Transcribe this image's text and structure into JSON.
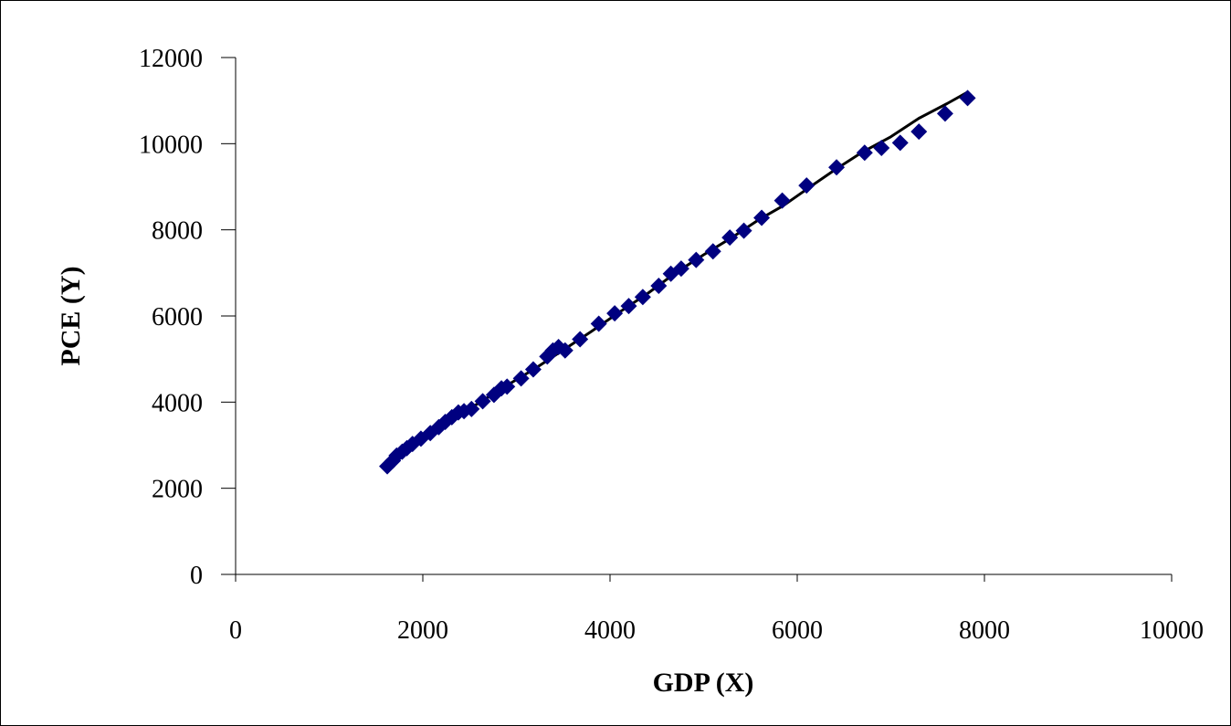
{
  "chart_data": {
    "type": "scatter",
    "title": "",
    "xlabel": "GDP (X)",
    "ylabel": "PCE (Y)",
    "xlim": [
      0,
      10000
    ],
    "ylim": [
      0,
      12000
    ],
    "x_ticks": [
      0,
      2000,
      4000,
      6000,
      8000,
      10000
    ],
    "y_ticks": [
      0,
      2000,
      4000,
      6000,
      8000,
      10000,
      12000
    ],
    "x_tick_labels": [
      "0",
      "2000",
      "4000",
      "6000",
      "8000",
      "10000"
    ],
    "y_tick_labels": [
      "0",
      "2000",
      "4000",
      "6000",
      "8000",
      "10000",
      "12000"
    ],
    "grid": false,
    "legend": "none",
    "series": [
      {
        "kind": "points",
        "marker": "diamond",
        "color": "#000080",
        "points": [
          [
            1620,
            2510
          ],
          [
            1680,
            2640
          ],
          [
            1720,
            2760
          ],
          [
            1780,
            2850
          ],
          [
            1830,
            2930
          ],
          [
            1890,
            3030
          ],
          [
            1980,
            3150
          ],
          [
            2080,
            3280
          ],
          [
            2170,
            3420
          ],
          [
            2240,
            3540
          ],
          [
            2310,
            3650
          ],
          [
            2380,
            3760
          ],
          [
            2440,
            3790
          ],
          [
            2520,
            3840
          ],
          [
            2640,
            4020
          ],
          [
            2760,
            4170
          ],
          [
            2840,
            4320
          ],
          [
            2900,
            4360
          ],
          [
            3050,
            4550
          ],
          [
            3180,
            4760
          ],
          [
            3330,
            5060
          ],
          [
            3390,
            5200
          ],
          [
            3450,
            5280
          ],
          [
            3520,
            5200
          ],
          [
            3680,
            5460
          ],
          [
            3880,
            5820
          ],
          [
            4050,
            6060
          ],
          [
            4200,
            6230
          ],
          [
            4350,
            6440
          ],
          [
            4520,
            6700
          ],
          [
            4650,
            6980
          ],
          [
            4760,
            7100
          ],
          [
            4920,
            7300
          ],
          [
            5100,
            7500
          ],
          [
            5280,
            7820
          ],
          [
            5430,
            7980
          ],
          [
            5620,
            8280
          ],
          [
            5840,
            8680
          ],
          [
            6100,
            9030
          ],
          [
            6420,
            9450
          ],
          [
            6720,
            9790
          ],
          [
            6900,
            9900
          ],
          [
            7100,
            10020
          ],
          [
            7300,
            10280
          ],
          [
            7580,
            10700
          ],
          [
            7820,
            11060
          ]
        ]
      },
      {
        "kind": "line",
        "color": "#000000",
        "points": [
          [
            1620,
            2540
          ],
          [
            1800,
            2860
          ],
          [
            2000,
            3180
          ],
          [
            2300,
            3600
          ],
          [
            2600,
            3980
          ],
          [
            2900,
            4390
          ],
          [
            3200,
            4780
          ],
          [
            3500,
            5210
          ],
          [
            3800,
            5640
          ],
          [
            4100,
            6090
          ],
          [
            4400,
            6520
          ],
          [
            4700,
            7000
          ],
          [
            5000,
            7420
          ],
          [
            5300,
            7820
          ],
          [
            5600,
            8250
          ],
          [
            5850,
            8560
          ],
          [
            6100,
            8940
          ],
          [
            6400,
            9390
          ],
          [
            6700,
            9810
          ],
          [
            7000,
            10160
          ],
          [
            7300,
            10590
          ],
          [
            7600,
            10930
          ],
          [
            7830,
            11210
          ]
        ]
      }
    ]
  }
}
